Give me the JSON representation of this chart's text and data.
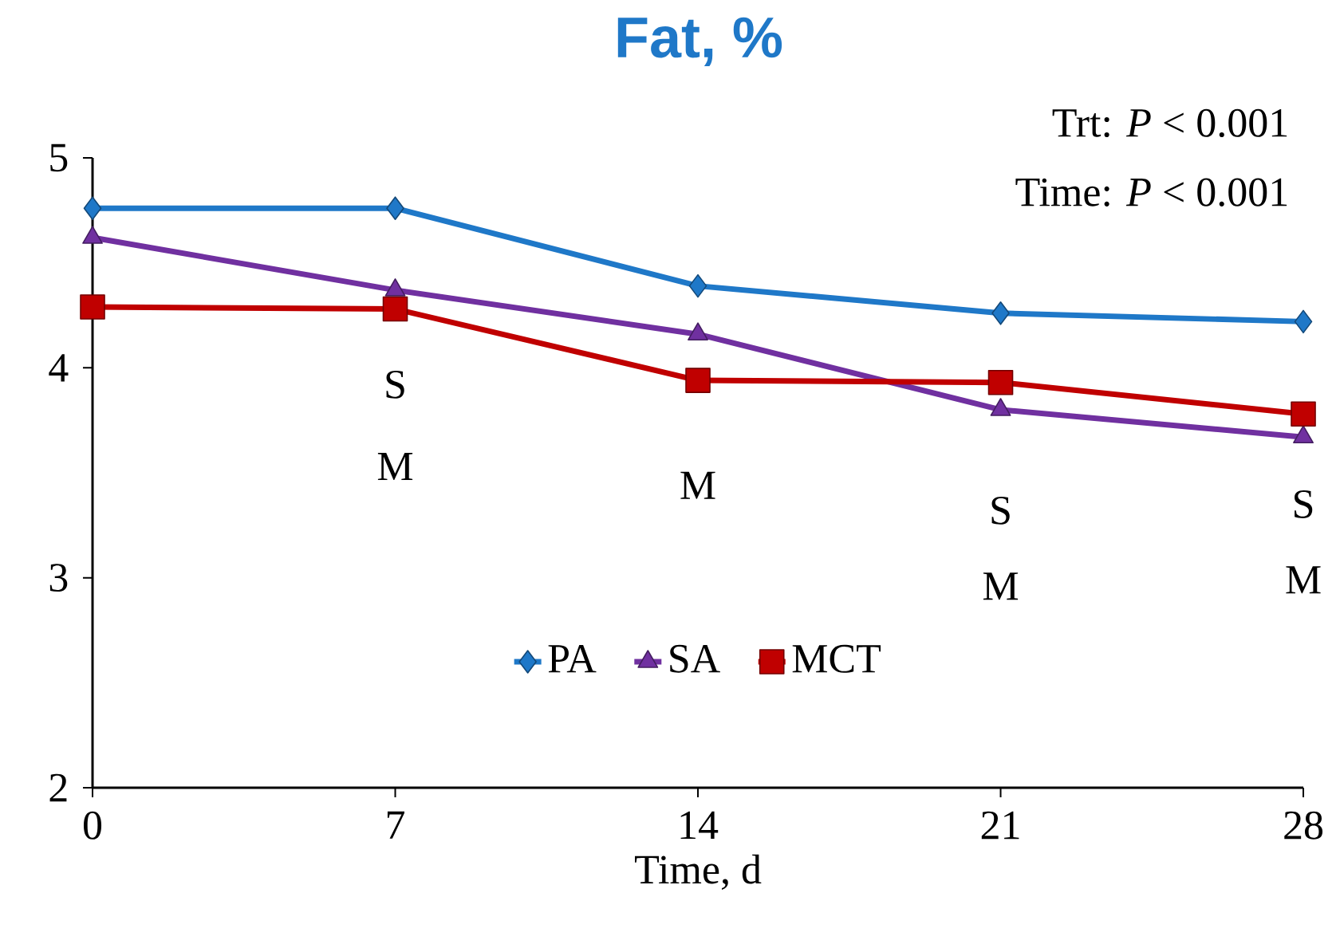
{
  "chart_data": {
    "type": "line",
    "title": "Fat, %",
    "xlabel": "Time, d",
    "x": [
      0,
      7,
      14,
      21,
      28
    ],
    "series": [
      {
        "name": "PA",
        "color": "#1f78c8",
        "marker": "diamond",
        "values": [
          4.76,
          4.76,
          4.39,
          4.26,
          4.22
        ]
      },
      {
        "name": "SA",
        "color": "#7030a0",
        "marker": "triangle",
        "values": [
          4.62,
          4.37,
          4.16,
          3.8,
          3.67
        ]
      },
      {
        "name": "MCT",
        "color": "#c00000",
        "marker": "square",
        "values": [
          4.29,
          4.28,
          3.94,
          3.93,
          3.78
        ]
      }
    ],
    "xlim": [
      0,
      28
    ],
    "xticks": [
      0,
      7,
      14,
      21,
      28
    ],
    "ylim": [
      2,
      5
    ],
    "yticks": [
      2,
      3,
      4,
      5
    ],
    "grid": false,
    "legend": "bottom",
    "line_style": "solid",
    "annotations": [
      "Trt: *P* < 0.001",
      "Time: *P* < 0.001",
      "S",
      "M",
      "M",
      "S",
      "M",
      "S",
      "M"
    ]
  }
}
